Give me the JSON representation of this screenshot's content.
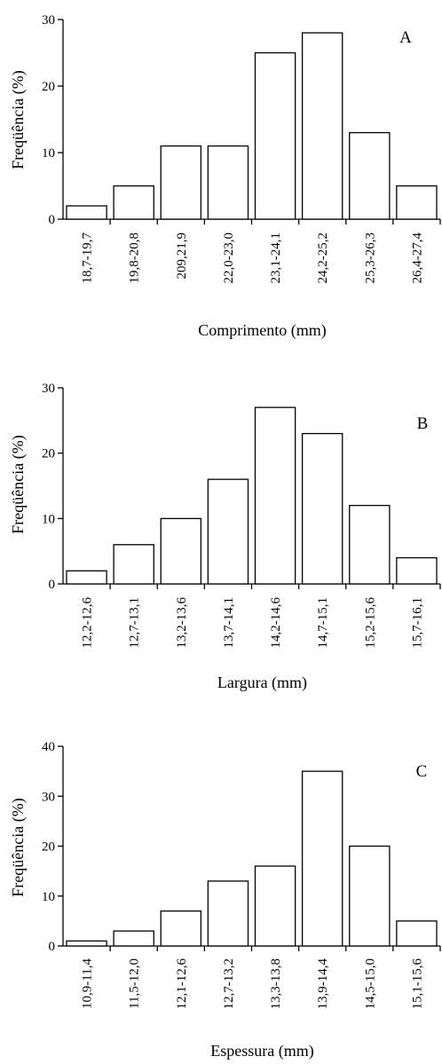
{
  "chart_data": [
    {
      "type": "bar",
      "panel": "A",
      "categories": [
        "18,7-19,7",
        "19,8-20,8",
        "209,21,9",
        "22,0-23,0",
        "23,1-24,1",
        "24,2-25,2",
        "25,3-26,3",
        "26,4-27,4"
      ],
      "values": [
        2,
        5,
        11,
        11,
        25,
        28,
        13,
        5
      ],
      "xlabel": "Comprimento (mm)",
      "ylabel": "Freqüência (%)",
      "ylim": [
        0,
        30
      ],
      "yticks": [
        0,
        10,
        20,
        30
      ],
      "grid": false
    },
    {
      "type": "bar",
      "panel": "B",
      "categories": [
        "12,2-12,6",
        "12,7-13,1",
        "13,2-13,6",
        "13,7-14,1",
        "14,2-14,6",
        "14,7-15,1",
        "15,2-15,6",
        "15,7-16,1"
      ],
      "values": [
        2,
        6,
        10,
        16,
        27,
        23,
        12,
        4
      ],
      "xlabel": "Largura (mm)",
      "ylabel": "Freqüência (%)",
      "ylim": [
        0,
        30
      ],
      "yticks": [
        0,
        10,
        20,
        30
      ],
      "grid": false
    },
    {
      "type": "bar",
      "panel": "C",
      "categories": [
        "10,9-11,4",
        "11,5-12,0",
        "12,1-12,6",
        "12,7-13,2",
        "13,3-13,8",
        "13,9-14,4",
        "14,5-15,0",
        "15,1-15,6"
      ],
      "values": [
        1,
        3,
        7,
        13,
        16,
        35,
        20,
        5
      ],
      "xlabel": "Espessura (mm)",
      "ylabel": "Freqüência (%)",
      "ylim": [
        0,
        40
      ],
      "yticks": [
        0,
        10,
        20,
        30,
        40
      ],
      "grid": false
    }
  ]
}
